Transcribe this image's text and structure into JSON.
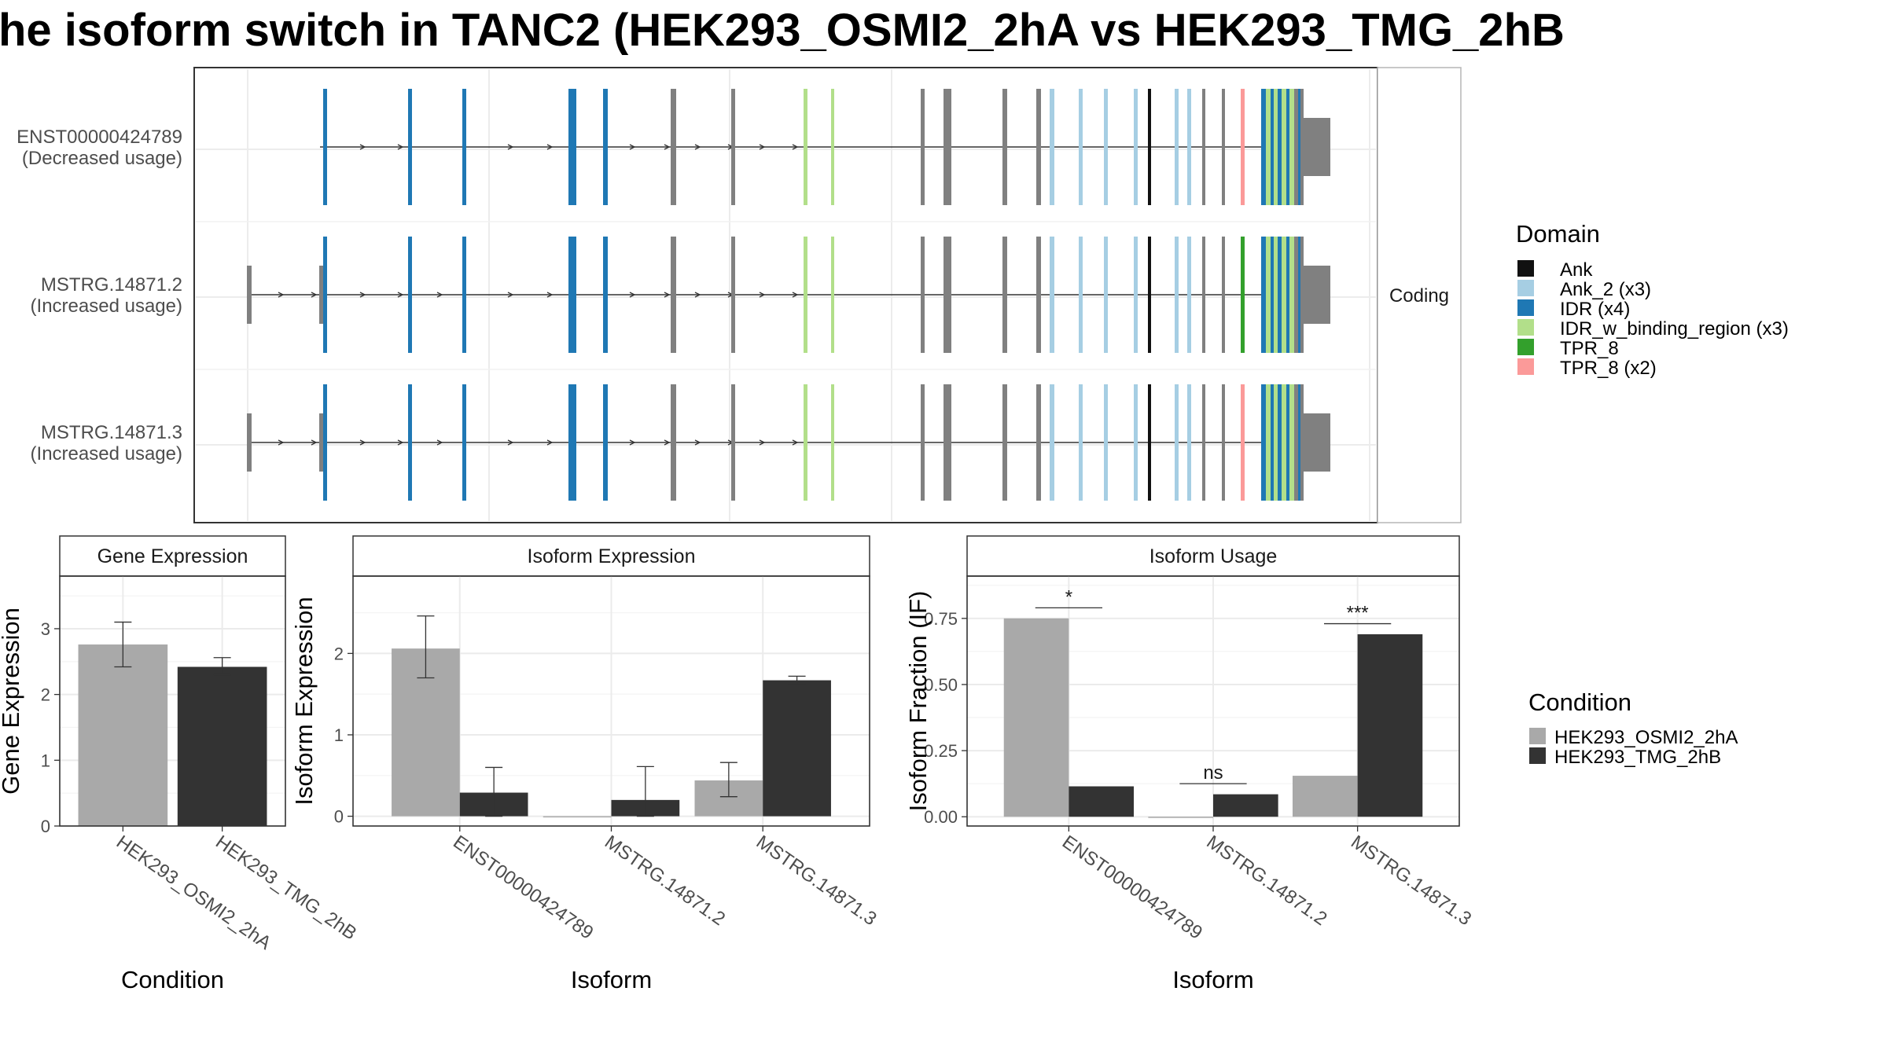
{
  "title": "he isoform switch in TANC2 (HEK293_OSMI2_2hA vs HEK293_TMG_2hB",
  "colors": {
    "background": "#ffffff",
    "panel_border": "#333333",
    "grid": "#ebebeb",
    "strip_fill": "#ffffff",
    "intron": "#333333",
    "exon": "#808080",
    "cond_a": "#a9a9a9",
    "cond_b": "#333333"
  },
  "domain_legend": {
    "title": "Domain",
    "items": [
      {
        "label": "Ank",
        "color": "#111111"
      },
      {
        "label": "Ank_2 (x3)",
        "color": "#a6cee3"
      },
      {
        "label": "IDR (x4)",
        "color": "#1f78b4"
      },
      {
        "label": "IDR_w_binding_region (x3)",
        "color": "#b2df8a"
      },
      {
        "label": "TPR_8",
        "color": "#33a02c"
      },
      {
        "label": "TPR_8 (x2)",
        "color": "#fb9a99"
      }
    ]
  },
  "condition_legend": {
    "title": "Condition",
    "items": [
      {
        "label": "HEK293_OSMI2_2hA",
        "color": "#a9a9a9"
      },
      {
        "label": "HEK293_TMG_2hB",
        "color": "#333333"
      }
    ]
  },
  "structure_panel": {
    "strip_label": "Coding",
    "transcripts": [
      {
        "id": "ENST00000424789",
        "note": "(Decreased usage)"
      },
      {
        "id": "MSTRG.14871.2",
        "note": "(Increased usage)"
      },
      {
        "id": "MSTRG.14871.3",
        "note": "(Increased usage)"
      }
    ]
  },
  "chart_data": [
    {
      "type": "bar",
      "title": "Gene Expression",
      "xlabel": "Condition",
      "ylabel": "Gene Expression",
      "categories": [
        "HEK293_OSMI2_2hA",
        "HEK293_TMG_2hB"
      ],
      "values": [
        2.76,
        2.42
      ],
      "errors": [
        [
          2.42,
          3.1
        ],
        [
          2.3,
          2.56
        ]
      ],
      "ylim": [
        0,
        3.8
      ],
      "yticks": [
        0,
        1,
        2,
        3
      ],
      "ytick_labels": [
        "0",
        "1",
        "2",
        "3"
      ]
    },
    {
      "type": "bar",
      "title": "Isoform Expression",
      "xlabel": "Isoform",
      "ylabel": "Isoform Expression",
      "categories": [
        "ENST00000424789",
        "MSTRG.14871.2",
        "MSTRG.14871.3"
      ],
      "series": [
        {
          "name": "HEK293_OSMI2_2hA",
          "values": [
            2.06,
            0.0,
            0.44
          ],
          "errors": [
            [
              1.7,
              2.46
            ],
            [
              0.0,
              0.0
            ],
            [
              0.24,
              0.66
            ]
          ]
        },
        {
          "name": "HEK293_TMG_2hB",
          "values": [
            0.29,
            0.2,
            1.67
          ],
          "errors": [
            [
              0.0,
              0.6
            ],
            [
              0.0,
              0.61
            ],
            [
              1.62,
              1.72
            ]
          ]
        }
      ],
      "ylim": [
        -0.12,
        2.95
      ],
      "yticks": [
        0,
        1,
        2
      ],
      "ytick_labels": [
        "0",
        "1",
        "2"
      ]
    },
    {
      "type": "bar",
      "title": "Isoform Usage",
      "xlabel": "Isoform",
      "ylabel": "Isoform Fraction (IF)",
      "categories": [
        "ENST00000424789",
        "MSTRG.14871.2",
        "MSTRG.14871.3"
      ],
      "series": [
        {
          "name": "HEK293_OSMI2_2hA",
          "values": [
            0.75,
            0.0,
            0.155
          ]
        },
        {
          "name": "HEK293_TMG_2hB",
          "values": [
            0.115,
            0.085,
            0.69
          ]
        }
      ],
      "significance": [
        {
          "category": "ENST00000424789",
          "label": "*",
          "y": 0.79
        },
        {
          "category": "MSTRG.14871.2",
          "label": "ns",
          "y": 0.125
        },
        {
          "category": "MSTRG.14871.3",
          "label": "***",
          "y": 0.73
        }
      ],
      "ylim": [
        -0.035,
        0.91
      ],
      "yticks": [
        0,
        0.25,
        0.5,
        0.75
      ],
      "ytick_labels": [
        "0.00",
        "0.25",
        "0.50",
        "0.75"
      ]
    }
  ]
}
